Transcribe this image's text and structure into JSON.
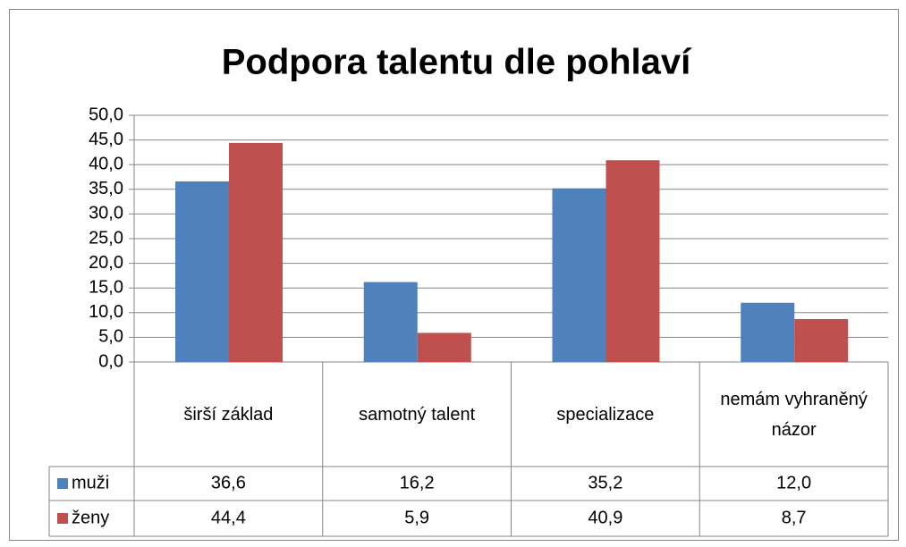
{
  "chart_data": {
    "type": "bar",
    "title": "Podpora talentu dle pohlaví",
    "categories": [
      "širší základ",
      "samotný talent",
      "specializace",
      "nemám vyhraněný názor"
    ],
    "series": [
      {
        "name": "muži",
        "color": "#4f81bd",
        "values": [
          36.6,
          16.2,
          35.2,
          12.0
        ],
        "value_labels": [
          "36,6",
          "16,2",
          "35,2",
          "12,0"
        ]
      },
      {
        "name": "ženy",
        "color": "#c0504d",
        "values": [
          44.4,
          5.9,
          40.9,
          8.7
        ],
        "value_labels": [
          "44,4",
          "5,9",
          "40,9",
          "8,7"
        ]
      }
    ],
    "ylim": [
      0,
      50
    ],
    "yticks": [
      {
        "value": 0,
        "label": "0,0"
      },
      {
        "value": 5,
        "label": "5,0"
      },
      {
        "value": 10,
        "label": "10,0"
      },
      {
        "value": 15,
        "label": "15,0"
      },
      {
        "value": 20,
        "label": "20,0"
      },
      {
        "value": 25,
        "label": "25,0"
      },
      {
        "value": 30,
        "label": "30,0"
      },
      {
        "value": 35,
        "label": "35,0"
      },
      {
        "value": 40,
        "label": "40,0"
      },
      {
        "value": 45,
        "label": "45,0"
      },
      {
        "value": 50,
        "label": "50,0"
      }
    ],
    "grid": true
  }
}
